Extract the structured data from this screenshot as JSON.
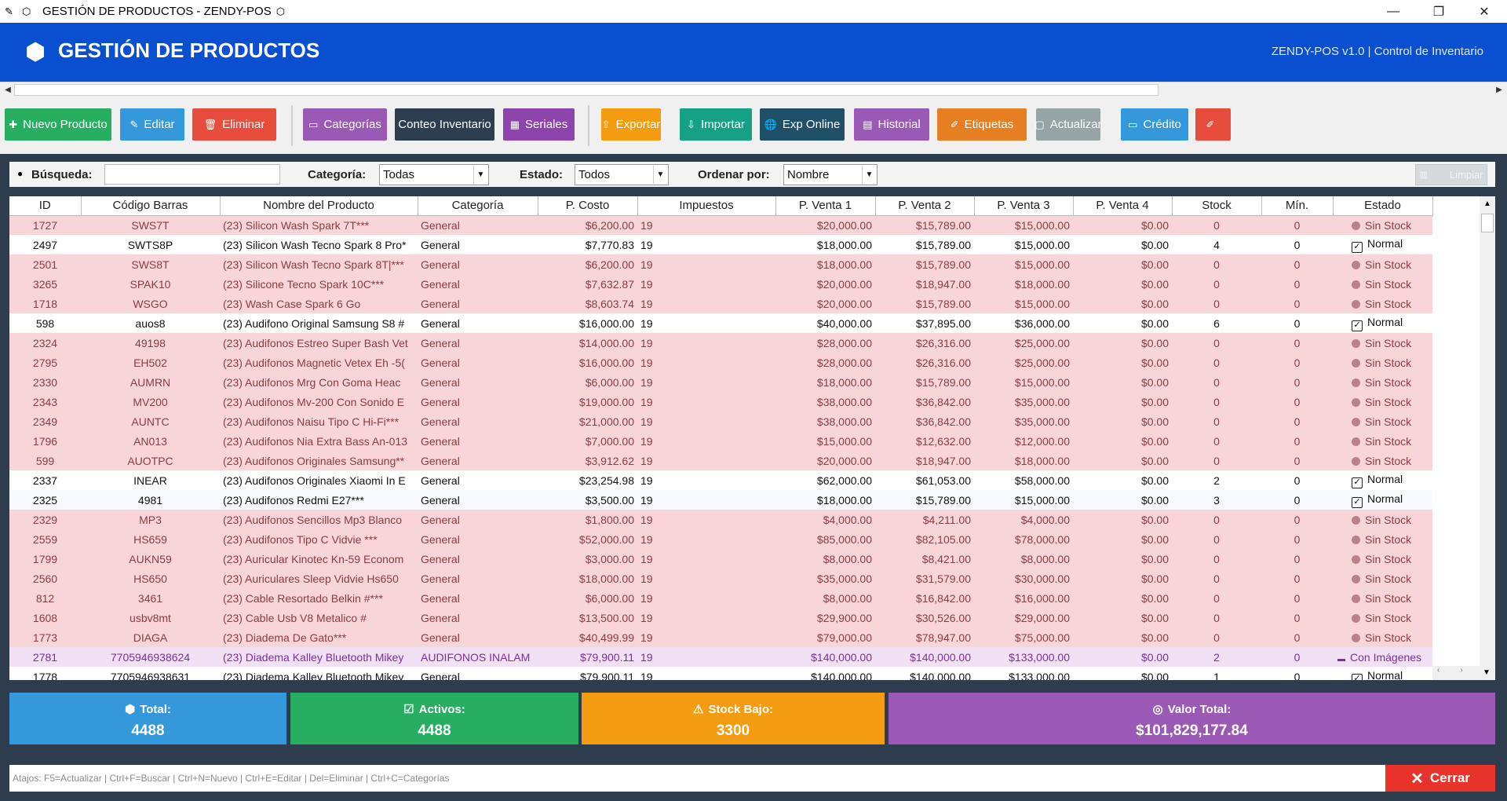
{
  "window": {
    "title": "GESTIÓN DE PRODUCTOS - ZENDY-POS",
    "minimize": "—",
    "restore": "❐",
    "close": "✕"
  },
  "header": {
    "title": "GESTIÓN DE PRODUCTOS",
    "subtitle": "ZENDY-POS v1.0 | Control de Inventario"
  },
  "toolbar": {
    "buttons": [
      {
        "label": "Nuevo Producto",
        "icon": "✚",
        "color": "#27ae60"
      },
      {
        "label": "Editar",
        "icon": "✎",
        "color": "#3498db"
      },
      {
        "label": "Eliminar",
        "icon": "🗑",
        "color": "#e74c3c"
      },
      {
        "label": "Categorías",
        "icon": "▭",
        "color": "#9b59b6"
      },
      {
        "label": "Conteo Inventario",
        "icon": "",
        "color": "#2c3e50"
      },
      {
        "label": "Seriales",
        "icon": "▦",
        "color": "#8e44ad"
      },
      {
        "label": "Exportar",
        "icon": "⇧",
        "color": "#f39c12"
      },
      {
        "label": "Importar",
        "icon": "⇩",
        "color": "#16a085"
      },
      {
        "label": "Exp Online",
        "icon": "🌐",
        "color": "#1f5068"
      },
      {
        "label": "Historial",
        "icon": "▤",
        "color": "#9b59b6"
      },
      {
        "label": "Etiquetas",
        "icon": "✐",
        "color": "#e67e22"
      },
      {
        "label": "Actualizar",
        "icon": "▢",
        "color": "#95a5a6"
      },
      {
        "label": "Crédito",
        "icon": "▭",
        "color": "#3498db"
      },
      {
        "label": "",
        "icon": "✐",
        "color": "#e74c3c"
      }
    ]
  },
  "filters": {
    "search_label": "Búsqueda:",
    "search_value": "",
    "category_label": "Categoría:",
    "category_value": "Todas",
    "status_label": "Estado:",
    "status_value": "Todos",
    "order_label": "Ordenar por:",
    "order_value": "Nombre",
    "clear_label": "Limpiar"
  },
  "table": {
    "columns": [
      "ID",
      "Código Barras",
      "Nombre del Producto",
      "Categoría",
      "P. Costo",
      "Impuestos",
      "P. Venta 1",
      "P. Venta 2",
      "P. Venta 3",
      "P. Venta 4",
      "Stock",
      "Mín.",
      "Estado"
    ],
    "rows": [
      {
        "type": "sin",
        "cells": [
          "1727",
          "SWS7T",
          "(23)  Silicon Wash Spark 7T***",
          "General",
          "$6,200.00",
          "19",
          "$20,000.00",
          "$15,789.00",
          "$15,000.00",
          "$0.00",
          "0",
          "0",
          "Sin Stock"
        ]
      },
      {
        "type": "norm",
        "cells": [
          "2497",
          "SWTS8P",
          "(23)  Silicon Wash Tecno Spark 8 Pro*",
          "General",
          "$7,770.83",
          "19",
          "$18,000.00",
          "$15,789.00",
          "$15,000.00",
          "$0.00",
          "4",
          "0",
          "Normal"
        ]
      },
      {
        "type": "sin",
        "cells": [
          "2501",
          "SWS8T",
          "(23)  Silicon Wash Tecno Spark 8T|***",
          "General",
          "$6,200.00",
          "19",
          "$18,000.00",
          "$15,789.00",
          "$15,000.00",
          "$0.00",
          "0",
          "0",
          "Sin Stock"
        ]
      },
      {
        "type": "sin",
        "cells": [
          "3265",
          "SPAK10",
          "(23)  Silicone Tecno Spark 10C***",
          "General",
          "$7,632.87",
          "19",
          "$20,000.00",
          "$18,947.00",
          "$18,000.00",
          "$0.00",
          "0",
          "0",
          "Sin Stock"
        ]
      },
      {
        "type": "sin",
        "cells": [
          "1718",
          "WSGO",
          "(23)  Wash Case Spark 6 Go",
          "General",
          "$8,603.74",
          "19",
          "$20,000.00",
          "$15,789.00",
          "$15,000.00",
          "$0.00",
          "0",
          "0",
          "Sin Stock"
        ]
      },
      {
        "type": "norm",
        "cells": [
          "598",
          "auos8",
          "(23) Audifono Original Samsung S8 #",
          "General",
          "$16,000.00",
          "19",
          "$40,000.00",
          "$37,895.00",
          "$36,000.00",
          "$0.00",
          "6",
          "0",
          "Normal"
        ]
      },
      {
        "type": "sin",
        "cells": [
          "2324",
          "49198",
          "(23) Audifonos Estreo Super Bash Vet",
          "General",
          "$14,000.00",
          "19",
          "$28,000.00",
          "$26,316.00",
          "$25,000.00",
          "$0.00",
          "0",
          "0",
          "Sin Stock"
        ]
      },
      {
        "type": "sin",
        "cells": [
          "2795",
          "EH502",
          "(23) Audifonos Magnetic Vetex Eh -5(",
          "General",
          "$16,000.00",
          "19",
          "$28,000.00",
          "$26,316.00",
          "$25,000.00",
          "$0.00",
          "0",
          "0",
          "Sin Stock"
        ]
      },
      {
        "type": "sin",
        "cells": [
          "2330",
          "AUMRN",
          "(23) Audifonos Mrg Con Goma  Heac",
          "General",
          "$6,000.00",
          "19",
          "$18,000.00",
          "$15,789.00",
          "$15,000.00",
          "$0.00",
          "0",
          "0",
          "Sin Stock"
        ]
      },
      {
        "type": "sin",
        "cells": [
          "2343",
          "MV200",
          "(23) Audifonos Mv-200 Con Sonido E",
          "General",
          "$19,000.00",
          "19",
          "$38,000.00",
          "$36,842.00",
          "$35,000.00",
          "$0.00",
          "0",
          "0",
          "Sin Stock"
        ]
      },
      {
        "type": "sin",
        "cells": [
          "2349",
          "AUNTC",
          "(23) Audifonos Naisu Tipo C Hi-Fi***",
          "General",
          "$21,000.00",
          "19",
          "$38,000.00",
          "$36,842.00",
          "$35,000.00",
          "$0.00",
          "0",
          "0",
          "Sin Stock"
        ]
      },
      {
        "type": "sin",
        "cells": [
          "1796",
          "AN013",
          "(23) Audifonos Nia Extra Bass An-013",
          "General",
          "$7,000.00",
          "19",
          "$15,000.00",
          "$12,632.00",
          "$12,000.00",
          "$0.00",
          "0",
          "0",
          "Sin Stock"
        ]
      },
      {
        "type": "sin",
        "cells": [
          "599",
          "AUOTPC",
          "(23) Audifonos Originales Samsung**",
          "General",
          "$3,912.62",
          "19",
          "$20,000.00",
          "$18,947.00",
          "$18,000.00",
          "$0.00",
          "0",
          "0",
          "Sin Stock"
        ]
      },
      {
        "type": "norm",
        "cells": [
          "2337",
          "INEAR",
          "(23) Audifonos Originales Xiaomi In E",
          "General",
          "$23,254.98",
          "19",
          "$62,000.00",
          "$61,053.00",
          "$58,000.00",
          "$0.00",
          "2",
          "0",
          "Normal"
        ]
      },
      {
        "type": "norm alt",
        "cells": [
          "2325",
          "4981",
          "(23) Audifonos Redmi E27***",
          "General",
          "$3,500.00",
          "19",
          "$18,000.00",
          "$15,789.00",
          "$15,000.00",
          "$0.00",
          "3",
          "0",
          "Normal"
        ]
      },
      {
        "type": "sin",
        "cells": [
          "2329",
          "MP3",
          "(23) Audifonos Sencillos Mp3 Blanco",
          "General",
          "$1,800.00",
          "19",
          "$4,000.00",
          "$4,211.00",
          "$4,000.00",
          "$0.00",
          "0",
          "0",
          "Sin Stock"
        ]
      },
      {
        "type": "sin",
        "cells": [
          "2559",
          "HS659",
          "(23) Audifonos Tipo C Vidvie ***",
          "General",
          "$52,000.00",
          "19",
          "$85,000.00",
          "$82,105.00",
          "$78,000.00",
          "$0.00",
          "0",
          "0",
          "Sin Stock"
        ]
      },
      {
        "type": "sin",
        "cells": [
          "1799",
          "AUKN59",
          "(23) Auricular Kinotec Kn-59 Econom",
          "General",
          "$3,000.00",
          "19",
          "$8,000.00",
          "$8,421.00",
          "$8,000.00",
          "$0.00",
          "0",
          "0",
          "Sin Stock"
        ]
      },
      {
        "type": "sin",
        "cells": [
          "2560",
          "HS650",
          "(23) Auriculares Sleep Vidvie Hs650",
          "General",
          "$18,000.00",
          "19",
          "$35,000.00",
          "$31,579.00",
          "$30,000.00",
          "$0.00",
          "0",
          "0",
          "Sin Stock"
        ]
      },
      {
        "type": "sin",
        "cells": [
          "812",
          "3461",
          "(23) Cable Resortado Belkin #***",
          "General",
          "$6,000.00",
          "19",
          "$8,000.00",
          "$16,842.00",
          "$16,000.00",
          "$0.00",
          "0",
          "0",
          "Sin Stock"
        ]
      },
      {
        "type": "sin",
        "cells": [
          "1608",
          "usbv8mt",
          "(23) Cable Usb V8 Metalico #",
          "General",
          "$13,500.00",
          "19",
          "$29,900.00",
          "$30,526.00",
          "$29,000.00",
          "$0.00",
          "0",
          "0",
          "Sin Stock"
        ]
      },
      {
        "type": "sin",
        "cells": [
          "1773",
          "DIAGA",
          "(23) Diadema De  Gato***",
          "General",
          "$40,499.99",
          "19",
          "$79,000.00",
          "$78,947.00",
          "$75,000.00",
          "$0.00",
          "0",
          "0",
          "Sin Stock"
        ]
      },
      {
        "type": "img",
        "cells": [
          "2781",
          "7705946938624",
          "(23) Diadema Kalley Bluetooth Mikey",
          "AUDIFONOS INALAM",
          "$79,900.11",
          "19",
          "$140,000.00",
          "$140,000.00",
          "$133,000.00",
          "$0.00",
          "2",
          "0",
          "Con Imágenes"
        ]
      },
      {
        "type": "norm",
        "cells": [
          "1778",
          "7705946938631",
          "(23) Diadema Kalley Bluetooth Mikey",
          "General",
          "$79,900.11",
          "19",
          "$140,000.00",
          "$140,000.00",
          "$133,000.00",
          "$0.00",
          "1",
          "0",
          "Normal"
        ]
      }
    ]
  },
  "stats": [
    {
      "label": "Total:",
      "value": "4488",
      "icon": "⬢",
      "color": "#3498db"
    },
    {
      "label": "Activos:",
      "value": "4488",
      "icon": "☑",
      "color": "#27ae60"
    },
    {
      "label": "Stock Bajo:",
      "value": "3300",
      "icon": "⚠",
      "color": "#f39c12"
    },
    {
      "label": "Valor Total:",
      "value": "$101,829,177.84",
      "icon": "◎",
      "color": "#9b59b6"
    }
  ],
  "footer": {
    "shortcuts": "Atajos: F5=Actualizar | Ctrl+F=Buscar | Ctrl+N=Nuevo | Ctrl+E=Editar | Del=Eliminar | Ctrl+C=Categorías",
    "close_label": "Cerrar"
  }
}
